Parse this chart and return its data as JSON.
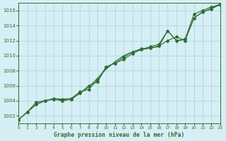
{
  "title": "Graphe pression niveau de la mer (hPa)",
  "bg_color": "#d6eff5",
  "grid_color": "#a8d4dc",
  "line_color": "#2d6e2d",
  "xlim": [
    0,
    23
  ],
  "ylim": [
    1001,
    1017
  ],
  "yticks": [
    1002,
    1004,
    1006,
    1008,
    1010,
    1012,
    1014,
    1016
  ],
  "xticks": [
    0,
    1,
    2,
    3,
    4,
    5,
    6,
    7,
    8,
    9,
    10,
    11,
    12,
    13,
    14,
    15,
    16,
    17,
    18,
    19,
    20,
    21,
    22,
    23
  ],
  "series1_x": [
    0,
    1,
    2,
    3,
    4,
    5,
    6,
    7,
    8,
    9,
    10,
    11,
    12,
    13,
    14,
    15,
    16,
    17,
    18,
    19,
    20,
    21,
    22,
    23
  ],
  "series1_y": [
    1001.5,
    1002.5,
    1003.5,
    1004.0,
    1004.2,
    1004.0,
    1004.2,
    1005.0,
    1006.0,
    1006.5,
    1008.5,
    1009.0,
    1009.5,
    1010.3,
    1010.8,
    1011.2,
    1011.5,
    1013.3,
    1012.0,
    1012.2,
    1015.5,
    1016.0,
    1016.5,
    1016.7
  ],
  "series2_x": [
    0,
    1,
    2,
    3,
    4,
    5,
    6,
    7,
    8,
    9,
    10,
    11,
    12,
    13,
    14,
    15,
    16,
    17,
    18,
    19,
    20,
    21,
    22,
    23
  ],
  "series2_y": [
    1001.5,
    1002.5,
    1003.8,
    1004.0,
    1004.3,
    1004.2,
    1004.3,
    1005.2,
    1005.5,
    1006.8,
    1008.5,
    1009.0,
    1009.8,
    1010.5,
    1010.9,
    1011.0,
    1011.3,
    1012.0,
    1012.5,
    1012.0,
    1015.0,
    1015.8,
    1016.2,
    1016.8
  ],
  "series3_x": [
    0,
    1,
    2,
    3,
    4,
    5,
    6,
    7,
    8,
    9,
    10,
    11,
    12,
    13,
    14,
    15,
    16,
    17,
    18,
    19,
    20,
    21,
    22,
    23
  ],
  "series3_y": [
    1001.5,
    1002.5,
    1003.5,
    1004.0,
    1004.2,
    1004.1,
    1004.2,
    1005.0,
    1005.8,
    1007.0,
    1008.2,
    1009.2,
    1010.0,
    1010.5,
    1010.8,
    1011.0,
    1011.2,
    1013.3,
    1012.0,
    1012.1,
    1015.0,
    1015.8,
    1016.3,
    1016.9
  ]
}
